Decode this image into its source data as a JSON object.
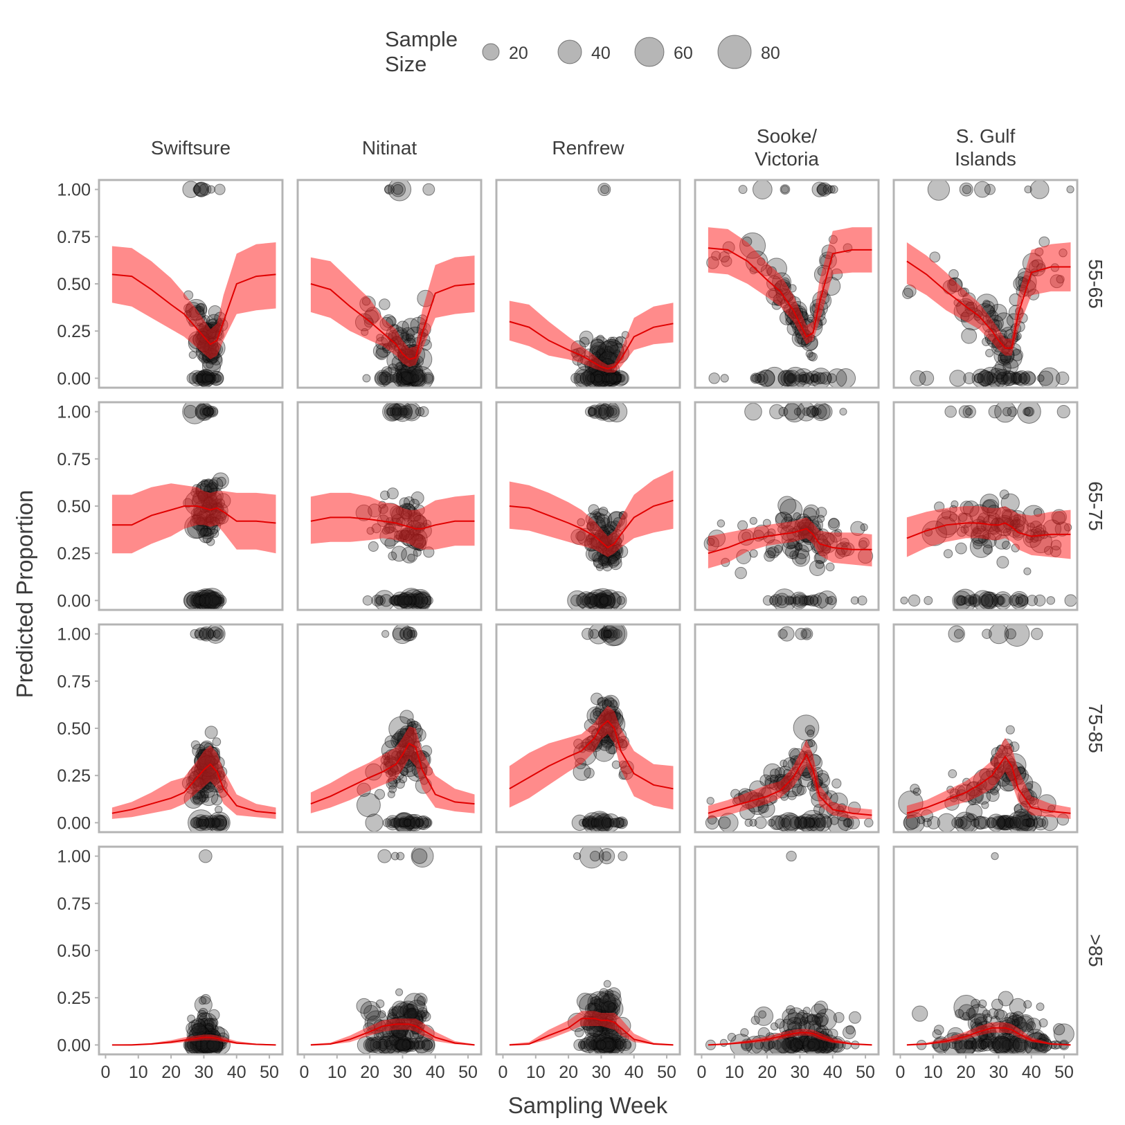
{
  "chart_data": {
    "type": "scatter",
    "title": "",
    "xlabel": "Sampling Week",
    "ylabel": "Predicted Proportion",
    "xlim": [
      -2,
      54
    ],
    "ylim": [
      -0.05,
      1.05
    ],
    "x_ticks": [
      0,
      10,
      20,
      30,
      40,
      50
    ],
    "y_ticks": [
      0,
      0.25,
      0.5,
      0.75,
      1
    ],
    "y_tick_labels": [
      "0.00",
      "0.25",
      "0.50",
      "0.75",
      "1.00"
    ],
    "grid": false,
    "legend": {
      "placement": "top-center",
      "title_lines": [
        "Sample",
        "Size"
      ],
      "entries": [
        {
          "label": "20",
          "size": 20
        },
        {
          "label": "40",
          "size": 40
        },
        {
          "label": "60",
          "size": 60
        },
        {
          "label": "80",
          "size": 80
        }
      ]
    },
    "columns": [
      {
        "key": "swiftsure",
        "label_lines": [
          "Swiftsure"
        ]
      },
      {
        "key": "nitinat",
        "label_lines": [
          "Nitinat"
        ]
      },
      {
        "key": "renfrew",
        "label_lines": [
          "Renfrew"
        ]
      },
      {
        "key": "sooke",
        "label_lines": [
          "Sooke/",
          "Victoria"
        ]
      },
      {
        "key": "sgulf",
        "label_lines": [
          "S. Gulf",
          "Islands"
        ]
      }
    ],
    "rows": [
      {
        "key": "r55",
        "label": "55-65"
      },
      {
        "key": "r65",
        "label": "65-75"
      },
      {
        "key": "r75",
        "label": "75-85"
      },
      {
        "key": "r85",
        "label": ">85"
      }
    ],
    "prediction_x": [
      2,
      8,
      14,
      20,
      24,
      28,
      30,
      32,
      34,
      36,
      40,
      46,
      52
    ],
    "predictions": [
      [
        {
          "y": [
            0.55,
            0.54,
            0.47,
            0.39,
            0.34,
            0.26,
            0.22,
            0.18,
            0.2,
            0.3,
            0.5,
            0.54,
            0.55
          ],
          "lo": [
            0.4,
            0.38,
            0.32,
            0.26,
            0.22,
            0.16,
            0.13,
            0.1,
            0.12,
            0.2,
            0.34,
            0.36,
            0.37
          ],
          "hi": [
            0.7,
            0.69,
            0.62,
            0.53,
            0.45,
            0.36,
            0.31,
            0.26,
            0.29,
            0.44,
            0.66,
            0.71,
            0.72
          ]
        },
        {
          "y": [
            0.5,
            0.47,
            0.38,
            0.3,
            0.24,
            0.18,
            0.13,
            0.1,
            0.11,
            0.24,
            0.45,
            0.49,
            0.5
          ],
          "lo": [
            0.35,
            0.32,
            0.25,
            0.2,
            0.17,
            0.12,
            0.08,
            0.06,
            0.07,
            0.15,
            0.32,
            0.34,
            0.35
          ],
          "hi": [
            0.64,
            0.62,
            0.52,
            0.42,
            0.32,
            0.26,
            0.2,
            0.16,
            0.17,
            0.36,
            0.6,
            0.64,
            0.65
          ]
        },
        {
          "y": [
            0.3,
            0.27,
            0.2,
            0.15,
            0.12,
            0.08,
            0.06,
            0.05,
            0.06,
            0.1,
            0.22,
            0.27,
            0.29
          ],
          "lo": [
            0.2,
            0.17,
            0.12,
            0.1,
            0.08,
            0.05,
            0.04,
            0.03,
            0.03,
            0.06,
            0.15,
            0.18,
            0.19
          ],
          "hi": [
            0.41,
            0.39,
            0.3,
            0.22,
            0.17,
            0.12,
            0.09,
            0.07,
            0.08,
            0.15,
            0.32,
            0.38,
            0.4
          ]
        },
        {
          "y": [
            0.69,
            0.68,
            0.62,
            0.52,
            0.46,
            0.36,
            0.29,
            0.22,
            0.24,
            0.4,
            0.66,
            0.68,
            0.68
          ],
          "lo": [
            0.56,
            0.55,
            0.5,
            0.43,
            0.38,
            0.3,
            0.24,
            0.18,
            0.2,
            0.3,
            0.55,
            0.56,
            0.56
          ],
          "hi": [
            0.8,
            0.79,
            0.72,
            0.61,
            0.55,
            0.44,
            0.36,
            0.28,
            0.3,
            0.52,
            0.78,
            0.8,
            0.8
          ]
        },
        {
          "y": [
            0.62,
            0.55,
            0.46,
            0.38,
            0.33,
            0.25,
            0.2,
            0.16,
            0.16,
            0.34,
            0.56,
            0.59,
            0.59
          ],
          "lo": [
            0.5,
            0.44,
            0.36,
            0.3,
            0.26,
            0.19,
            0.15,
            0.12,
            0.12,
            0.26,
            0.44,
            0.46,
            0.46
          ],
          "hi": [
            0.72,
            0.65,
            0.56,
            0.46,
            0.4,
            0.31,
            0.26,
            0.21,
            0.21,
            0.44,
            0.68,
            0.71,
            0.72
          ]
        }
      ],
      [
        {
          "y": [
            0.4,
            0.4,
            0.45,
            0.48,
            0.5,
            0.5,
            0.49,
            0.48,
            0.49,
            0.47,
            0.42,
            0.42,
            0.41
          ],
          "lo": [
            0.25,
            0.25,
            0.3,
            0.34,
            0.38,
            0.4,
            0.4,
            0.39,
            0.4,
            0.36,
            0.27,
            0.27,
            0.25
          ],
          "hi": [
            0.56,
            0.56,
            0.6,
            0.62,
            0.61,
            0.6,
            0.58,
            0.57,
            0.58,
            0.58,
            0.57,
            0.57,
            0.56
          ]
        },
        {
          "y": [
            0.42,
            0.44,
            0.44,
            0.43,
            0.42,
            0.41,
            0.4,
            0.39,
            0.38,
            0.38,
            0.4,
            0.42,
            0.42
          ],
          "lo": [
            0.3,
            0.31,
            0.31,
            0.32,
            0.33,
            0.32,
            0.31,
            0.3,
            0.28,
            0.27,
            0.27,
            0.29,
            0.29
          ],
          "hi": [
            0.55,
            0.57,
            0.57,
            0.55,
            0.52,
            0.51,
            0.49,
            0.48,
            0.48,
            0.49,
            0.53,
            0.55,
            0.56
          ]
        },
        {
          "y": [
            0.5,
            0.49,
            0.45,
            0.41,
            0.38,
            0.34,
            0.31,
            0.28,
            0.3,
            0.35,
            0.44,
            0.5,
            0.53
          ],
          "lo": [
            0.38,
            0.37,
            0.34,
            0.31,
            0.29,
            0.27,
            0.25,
            0.23,
            0.25,
            0.28,
            0.33,
            0.36,
            0.38
          ],
          "hi": [
            0.63,
            0.61,
            0.57,
            0.52,
            0.48,
            0.42,
            0.38,
            0.34,
            0.37,
            0.44,
            0.56,
            0.64,
            0.69
          ]
        },
        {
          "y": [
            0.25,
            0.28,
            0.32,
            0.34,
            0.35,
            0.36,
            0.37,
            0.38,
            0.35,
            0.3,
            0.28,
            0.27,
            0.27
          ],
          "lo": [
            0.17,
            0.2,
            0.26,
            0.29,
            0.3,
            0.31,
            0.32,
            0.33,
            0.3,
            0.24,
            0.2,
            0.19,
            0.18
          ],
          "hi": [
            0.34,
            0.36,
            0.38,
            0.4,
            0.41,
            0.42,
            0.43,
            0.44,
            0.41,
            0.37,
            0.36,
            0.36,
            0.35
          ]
        },
        {
          "y": [
            0.33,
            0.37,
            0.4,
            0.41,
            0.41,
            0.4,
            0.4,
            0.41,
            0.39,
            0.36,
            0.34,
            0.35,
            0.35
          ],
          "lo": [
            0.23,
            0.28,
            0.31,
            0.33,
            0.33,
            0.32,
            0.32,
            0.33,
            0.31,
            0.27,
            0.24,
            0.23,
            0.22
          ],
          "hi": [
            0.44,
            0.47,
            0.49,
            0.5,
            0.5,
            0.49,
            0.49,
            0.5,
            0.48,
            0.46,
            0.45,
            0.47,
            0.48
          ]
        }
      ],
      [
        {
          "y": [
            0.05,
            0.07,
            0.1,
            0.13,
            0.16,
            0.24,
            0.28,
            0.31,
            0.27,
            0.18,
            0.09,
            0.06,
            0.05
          ],
          "lo": [
            0.02,
            0.03,
            0.05,
            0.07,
            0.1,
            0.16,
            0.19,
            0.22,
            0.18,
            0.1,
            0.04,
            0.03,
            0.02
          ],
          "hi": [
            0.08,
            0.11,
            0.16,
            0.22,
            0.24,
            0.33,
            0.38,
            0.41,
            0.37,
            0.28,
            0.15,
            0.1,
            0.08
          ]
        },
        {
          "y": [
            0.1,
            0.14,
            0.19,
            0.24,
            0.27,
            0.31,
            0.36,
            0.42,
            0.4,
            0.28,
            0.15,
            0.11,
            0.1
          ],
          "lo": [
            0.05,
            0.08,
            0.12,
            0.17,
            0.2,
            0.23,
            0.28,
            0.34,
            0.3,
            0.18,
            0.08,
            0.06,
            0.05
          ],
          "hi": [
            0.16,
            0.21,
            0.27,
            0.32,
            0.36,
            0.4,
            0.45,
            0.51,
            0.5,
            0.38,
            0.25,
            0.18,
            0.15
          ]
        },
        {
          "y": [
            0.18,
            0.24,
            0.3,
            0.35,
            0.38,
            0.45,
            0.51,
            0.54,
            0.5,
            0.38,
            0.26,
            0.2,
            0.18
          ],
          "lo": [
            0.08,
            0.13,
            0.2,
            0.27,
            0.31,
            0.38,
            0.44,
            0.47,
            0.42,
            0.28,
            0.14,
            0.09,
            0.07
          ],
          "hi": [
            0.3,
            0.37,
            0.42,
            0.45,
            0.47,
            0.53,
            0.58,
            0.62,
            0.59,
            0.5,
            0.38,
            0.31,
            0.3
          ]
        },
        {
          "y": [
            0.05,
            0.08,
            0.11,
            0.14,
            0.17,
            0.24,
            0.3,
            0.36,
            0.28,
            0.14,
            0.07,
            0.05,
            0.04
          ],
          "lo": [
            0.02,
            0.04,
            0.07,
            0.1,
            0.13,
            0.19,
            0.24,
            0.3,
            0.22,
            0.09,
            0.04,
            0.02,
            0.02
          ],
          "hi": [
            0.09,
            0.12,
            0.16,
            0.2,
            0.22,
            0.3,
            0.37,
            0.44,
            0.36,
            0.2,
            0.11,
            0.08,
            0.07
          ]
        },
        {
          "y": [
            0.05,
            0.08,
            0.12,
            0.16,
            0.2,
            0.25,
            0.3,
            0.35,
            0.3,
            0.18,
            0.08,
            0.06,
            0.05
          ],
          "lo": [
            0.02,
            0.04,
            0.08,
            0.11,
            0.14,
            0.18,
            0.22,
            0.27,
            0.21,
            0.11,
            0.04,
            0.03,
            0.02
          ],
          "hi": [
            0.09,
            0.12,
            0.17,
            0.22,
            0.27,
            0.33,
            0.39,
            0.45,
            0.4,
            0.28,
            0.14,
            0.1,
            0.08
          ]
        }
      ],
      [
        {
          "y": [
            0,
            0,
            0.005,
            0.015,
            0.025,
            0.035,
            0.04,
            0.04,
            0.035,
            0.025,
            0.01,
            0.003,
            0
          ],
          "lo": [
            0,
            0,
            0.002,
            0.008,
            0.015,
            0.022,
            0.025,
            0.025,
            0.022,
            0.015,
            0.005,
            0.001,
            0
          ],
          "hi": [
            0.002,
            0.004,
            0.01,
            0.025,
            0.04,
            0.05,
            0.055,
            0.055,
            0.05,
            0.04,
            0.02,
            0.007,
            0.003
          ]
        },
        {
          "y": [
            0,
            0.005,
            0.03,
            0.07,
            0.1,
            0.11,
            0.11,
            0.11,
            0.1,
            0.08,
            0.04,
            0.01,
            0
          ],
          "lo": [
            0,
            0.002,
            0.015,
            0.05,
            0.07,
            0.08,
            0.08,
            0.08,
            0.07,
            0.05,
            0.02,
            0.004,
            0
          ],
          "hi": [
            0.005,
            0.012,
            0.05,
            0.1,
            0.13,
            0.14,
            0.14,
            0.14,
            0.14,
            0.12,
            0.07,
            0.02,
            0.004
          ]
        },
        {
          "y": [
            0,
            0.005,
            0.05,
            0.09,
            0.14,
            0.14,
            0.13,
            0.13,
            0.12,
            0.09,
            0.03,
            0.005,
            0
          ],
          "lo": [
            0,
            0.002,
            0.03,
            0.07,
            0.1,
            0.1,
            0.1,
            0.09,
            0.08,
            0.05,
            0.015,
            0.002,
            0
          ],
          "hi": [
            0.005,
            0.015,
            0.08,
            0.13,
            0.18,
            0.18,
            0.17,
            0.17,
            0.17,
            0.14,
            0.06,
            0.012,
            0.004
          ]
        },
        {
          "y": [
            0,
            0.005,
            0.015,
            0.03,
            0.045,
            0.06,
            0.065,
            0.065,
            0.06,
            0.045,
            0.02,
            0.005,
            0
          ],
          "lo": [
            0,
            0.002,
            0.008,
            0.018,
            0.03,
            0.045,
            0.05,
            0.05,
            0.045,
            0.03,
            0.01,
            0.002,
            0
          ],
          "hi": [
            0.004,
            0.01,
            0.025,
            0.045,
            0.065,
            0.08,
            0.085,
            0.085,
            0.08,
            0.065,
            0.035,
            0.01,
            0.004
          ]
        },
        {
          "y": [
            0,
            0.005,
            0.02,
            0.045,
            0.07,
            0.09,
            0.09,
            0.09,
            0.08,
            0.06,
            0.025,
            0.005,
            0
          ],
          "lo": [
            0,
            0.002,
            0.01,
            0.03,
            0.05,
            0.065,
            0.065,
            0.065,
            0.06,
            0.04,
            0.015,
            0.002,
            0
          ],
          "hi": [
            0.004,
            0.012,
            0.035,
            0.07,
            0.1,
            0.12,
            0.12,
            0.12,
            0.11,
            0.09,
            0.04,
            0.01,
            0.004
          ]
        }
      ]
    ]
  }
}
